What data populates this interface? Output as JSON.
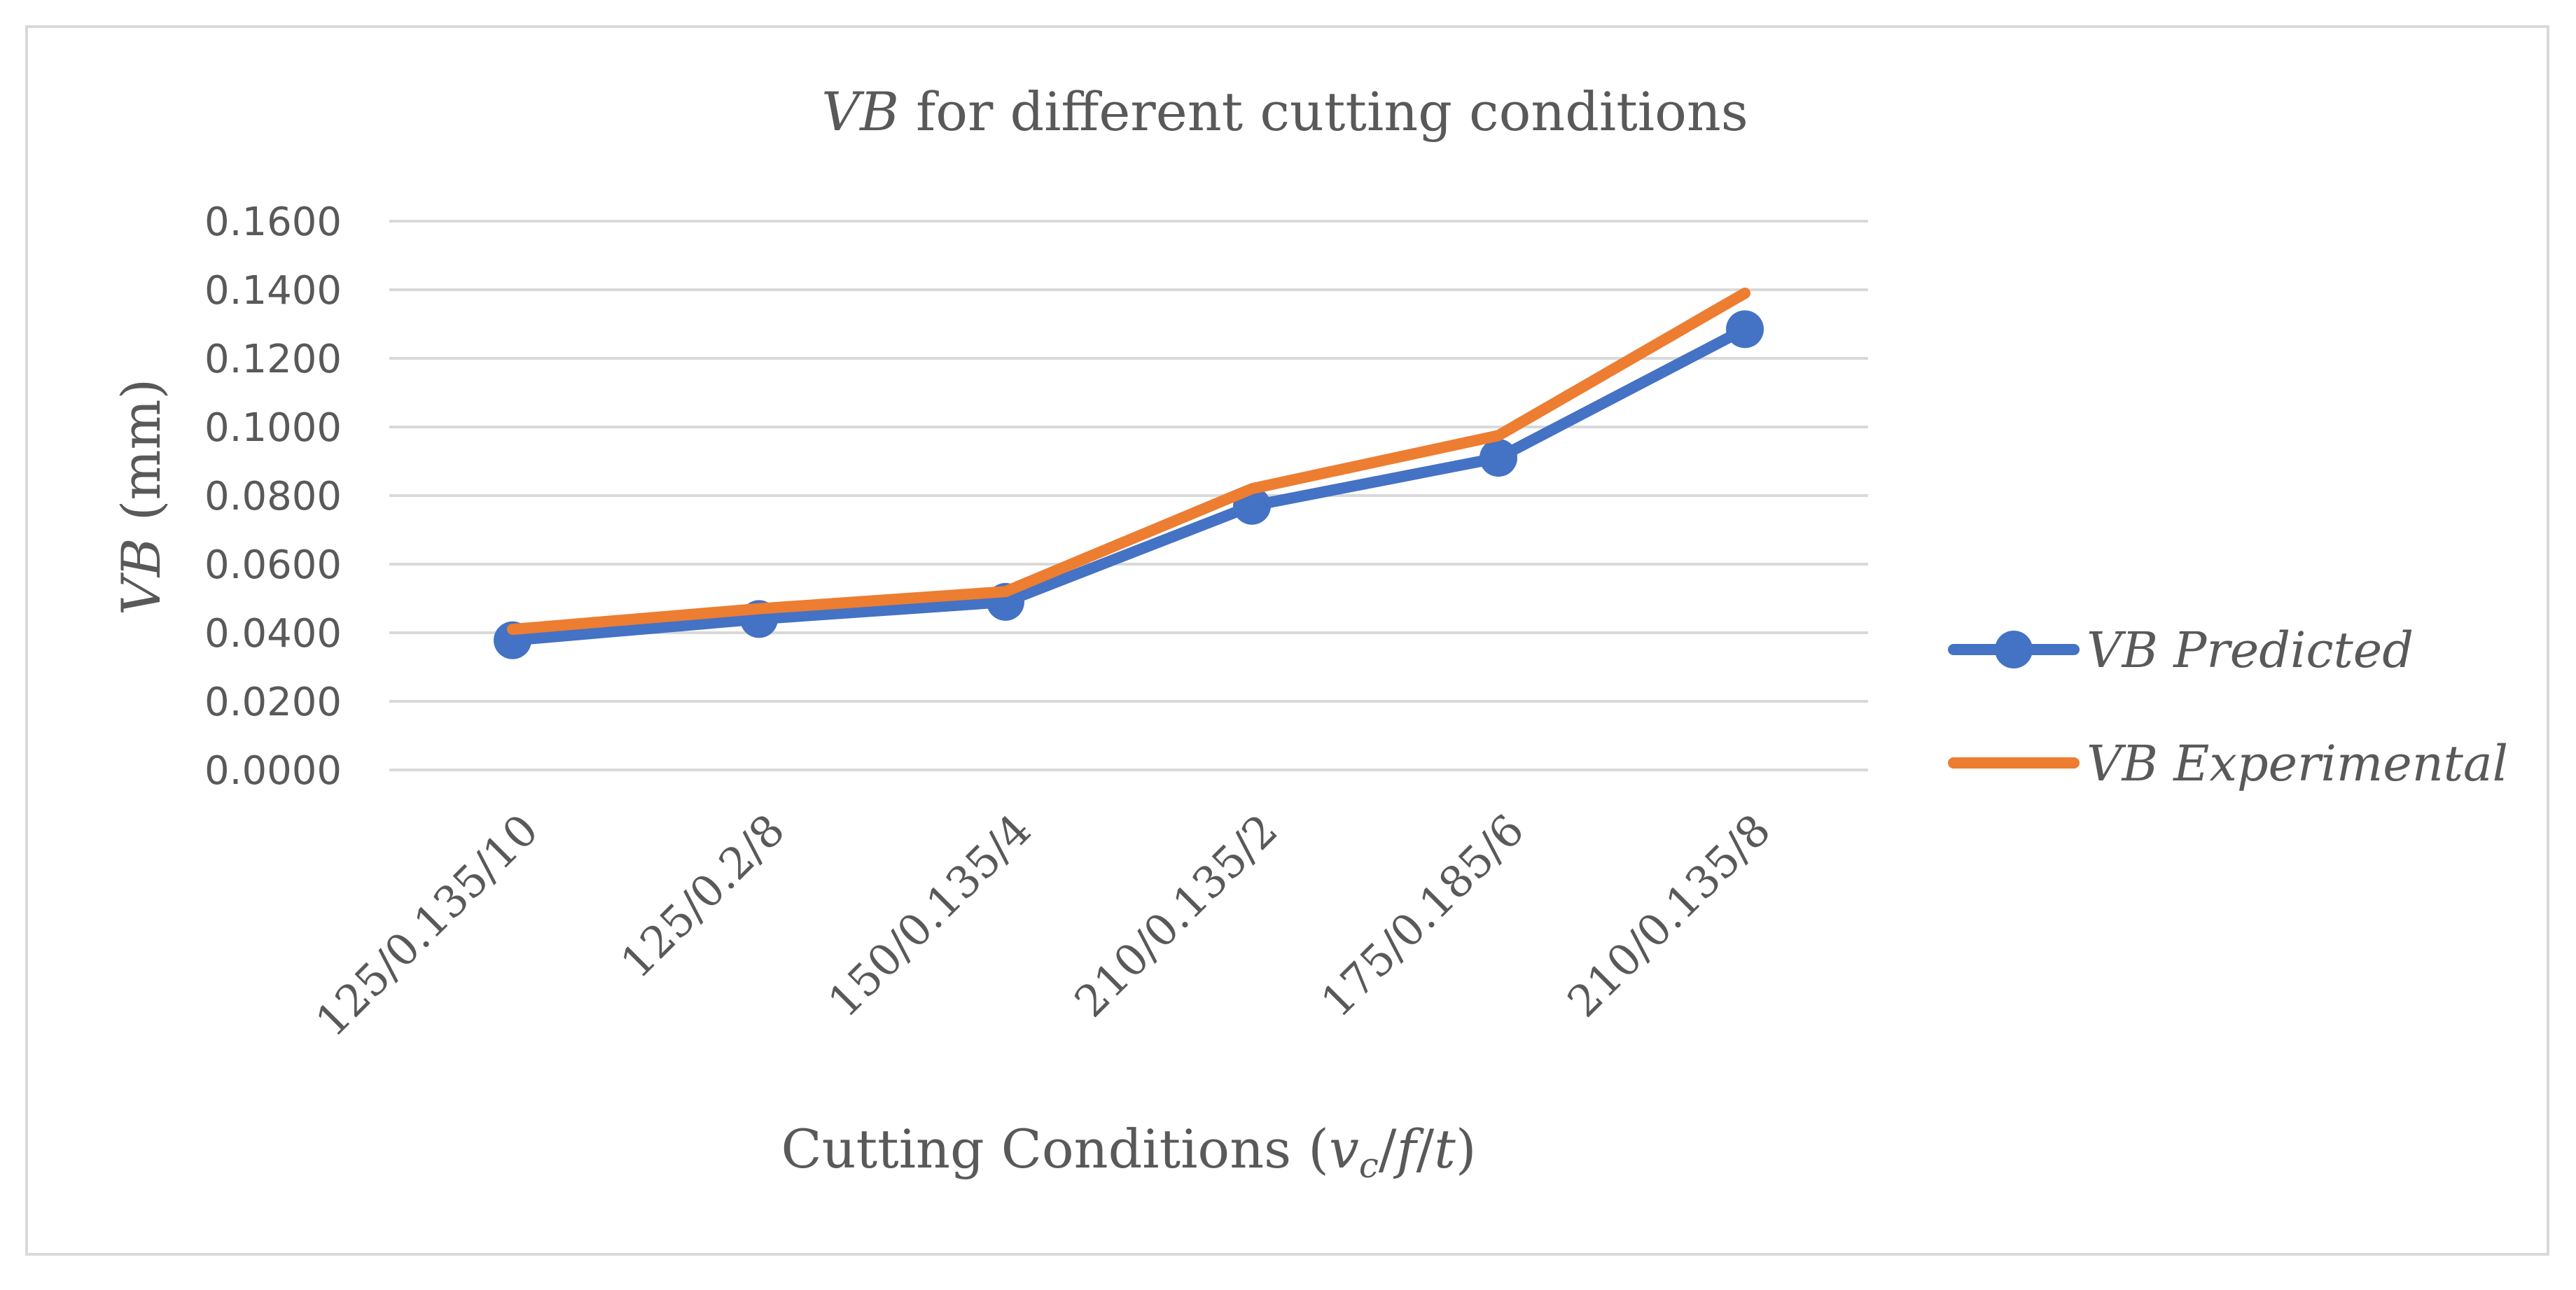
{
  "chart_data": {
    "type": "line",
    "title_italic": "VB",
    "title_rest": " for different cutting conditions",
    "ylabel_italic": "VB",
    "ylabel_rest": " (mm)",
    "xlabel_parts": {
      "prefix": "Cutting Conditions (",
      "v": "v",
      "sub": "c",
      "slash1": "/",
      "f": "f",
      "slash2": "/",
      "t": "t",
      "suffix": ")"
    },
    "categories": [
      "125/0.135/10",
      "125/0.2/8",
      "150/0.135/4",
      "210/0.135/2",
      "175/0.185/6",
      "210/0.135/8"
    ],
    "y_ticks": [
      "0.0000",
      "0.0200",
      "0.0400",
      "0.0600",
      "0.0800",
      "0.1000",
      "0.1200",
      "0.1400",
      "0.1600"
    ],
    "ylim": [
      0,
      0.16
    ],
    "series": [
      {
        "name": "VB Predicted",
        "color": "#4472c4",
        "markers": true,
        "values": [
          0.0378,
          0.044,
          0.049,
          0.077,
          0.091,
          0.1285
        ]
      },
      {
        "name": "VB Experimental",
        "color": "#ed7d31",
        "markers": false,
        "values": [
          0.041,
          0.047,
          0.052,
          0.082,
          0.0975,
          0.139
        ]
      }
    ],
    "grid": true,
    "legend_position": "right"
  }
}
